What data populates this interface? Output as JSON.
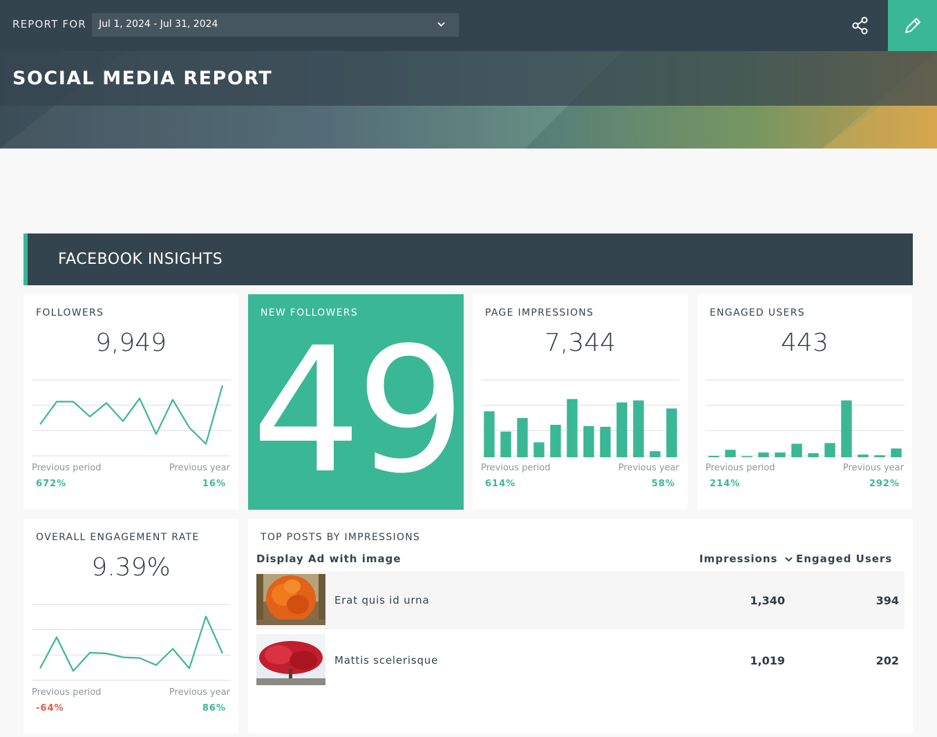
{
  "header": {
    "report_for_label": "REPORT FOR",
    "date_range": "Jul 1, 2024 - Jul 31, 2024",
    "icons": {
      "share": "share-icon",
      "edit": "pencil-icon",
      "dropdown": "chevron-down-icon"
    }
  },
  "banner": {
    "title": "SOCIAL MEDIA REPORT"
  },
  "section": {
    "title": "FACEBOOK INSIGHTS"
  },
  "colors": {
    "accent": "#3ab795",
    "dark": "#34444f",
    "negative": "#e05a4d"
  },
  "cards": {
    "followers": {
      "title": "FOLLOWERS",
      "value": "9,949",
      "prev_period_label": "Previous period",
      "prev_period": "672%",
      "prev_year_label": "Previous year",
      "prev_year": "16%",
      "chart_data": {
        "type": "line",
        "values": [
          40,
          75,
          75,
          52,
          73,
          45,
          80,
          25,
          78,
          35,
          10,
          100
        ]
      }
    },
    "new_followers": {
      "title": "NEW FOLLOWERS",
      "value": "49"
    },
    "page_impressions": {
      "title": "PAGE IMPRESSIONS",
      "value": "7,344",
      "prev_period_label": "Previous period",
      "prev_period": "614%",
      "prev_year_label": "Previous year",
      "prev_year": "58%",
      "chart_data": {
        "type": "bar",
        "values": [
          68,
          38,
          58,
          22,
          48,
          86,
          46,
          45,
          81,
          84,
          9,
          72
        ]
      }
    },
    "engaged_users": {
      "title": "ENGAGED USERS",
      "value": "443",
      "prev_period_label": "Previous period",
      "prev_period": "214%",
      "prev_year_label": "Previous year",
      "prev_year": "292%",
      "chart_data": {
        "type": "bar",
        "values": [
          2,
          11,
          0,
          7,
          7,
          20,
          6,
          21,
          84,
          4,
          3,
          13
        ]
      }
    },
    "engagement_rate": {
      "title": "OVERALL ENGAGEMENT RATE",
      "value": "9.39%",
      "prev_period_label": "Previous period",
      "prev_period": "-64%",
      "prev_year_label": "Previous year",
      "prev_year": "86%",
      "chart_data": {
        "type": "line",
        "values": [
          10,
          58,
          6,
          34,
          33,
          27,
          26,
          15,
          40,
          10,
          90,
          33
        ]
      }
    }
  },
  "top_posts": {
    "title": "TOP POSTS BY IMPRESSIONS",
    "columns": {
      "post": "Display Ad with image",
      "impressions": "Impressions",
      "engaged": "Engaged Users"
    },
    "rows": [
      {
        "name": "Erat quis id urna",
        "impressions": "1,340",
        "engaged": "394"
      },
      {
        "name": "Mattis scelerisque",
        "impressions": "1,019",
        "engaged": "202"
      }
    ]
  }
}
